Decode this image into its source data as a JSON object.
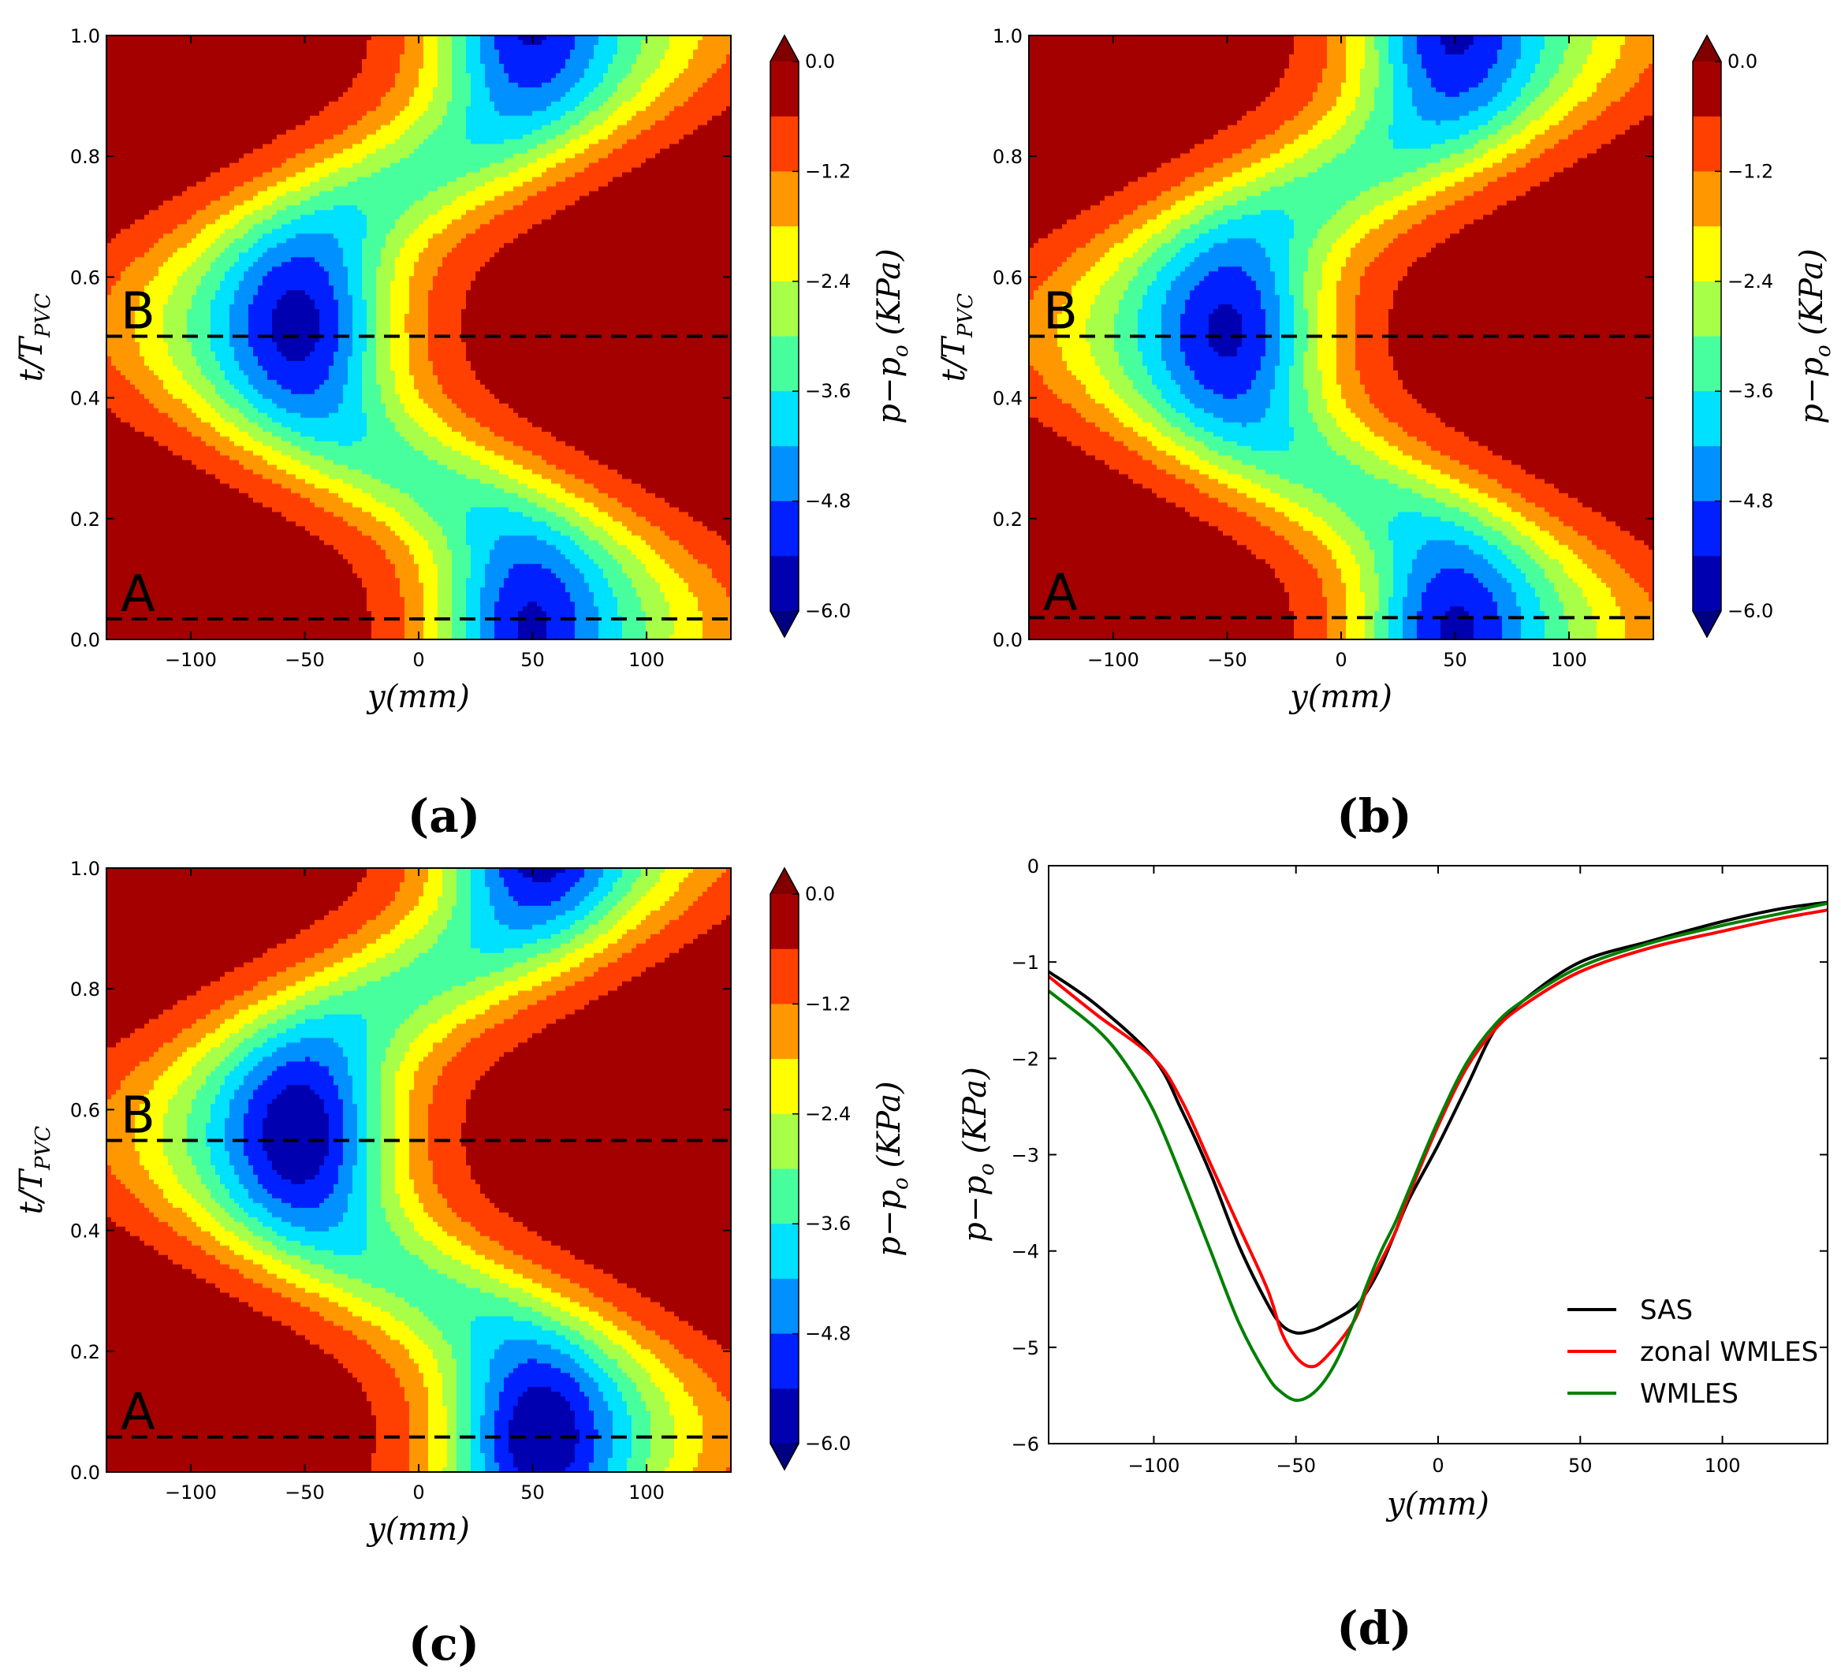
{
  "figure": {
    "panels": [
      {
        "id": "a",
        "type": "contour",
        "label": "(a)",
        "xlabel": "y(mm)",
        "ylabel_main": "t/T",
        "ylabel_sub": "PVC",
        "xlim": [
          -137,
          137
        ],
        "ylim": [
          0.0,
          1.0
        ],
        "xticks": [
          -100,
          -50,
          0,
          50,
          100
        ],
        "xtick_labels": [
          "−100",
          "−50",
          "0",
          "50",
          "100"
        ],
        "yticks": [
          0.0,
          0.2,
          0.4,
          0.6,
          0.8,
          1.0
        ],
        "ytick_labels": [
          "0.0",
          "0.2",
          "0.4",
          "0.6",
          "0.8",
          "1.0"
        ],
        "dashed_lines": [
          {
            "name": "A",
            "t": 0.034
          },
          {
            "name": "B",
            "t": 0.502
          }
        ],
        "vortex": {
          "center_t": 0.52,
          "center_y": -47,
          "second_center_y": 42,
          "strength": 1.0,
          "base_min": -6.1
        }
      },
      {
        "id": "b",
        "type": "contour",
        "label": "(b)",
        "xlabel": "y(mm)",
        "ylabel_main": "t/T",
        "ylabel_sub": "PVC",
        "xlim": [
          -137,
          137
        ],
        "ylim": [
          0.0,
          1.0
        ],
        "xticks": [
          -100,
          -50,
          0,
          50,
          100
        ],
        "xtick_labels": [
          "−100",
          "−50",
          "0",
          "50",
          "100"
        ],
        "yticks": [
          0.0,
          0.2,
          0.4,
          0.6,
          0.8,
          1.0
        ],
        "ytick_labels": [
          "0.0",
          "0.2",
          "0.4",
          "0.6",
          "0.8",
          "1.0"
        ],
        "dashed_lines": [
          {
            "name": "A",
            "t": 0.036
          },
          {
            "name": "B",
            "t": 0.502
          }
        ],
        "vortex": {
          "center_t": 0.51,
          "center_y": -43,
          "second_center_y": 43,
          "strength": 1.0,
          "base_min": -6.1
        }
      },
      {
        "id": "c",
        "type": "contour",
        "label": "(c)",
        "xlabel": "y(mm)",
        "ylabel_main": "t/T",
        "ylabel_sub": "PVC",
        "xlim": [
          -137,
          137
        ],
        "ylim": [
          0.0,
          1.0
        ],
        "xticks": [
          -100,
          -50,
          0,
          50,
          100
        ],
        "xtick_labels": [
          "−100",
          "−50",
          "0",
          "50",
          "100"
        ],
        "yticks": [
          0.0,
          0.2,
          0.4,
          0.6,
          0.8,
          1.0
        ],
        "ytick_labels": [
          "0.0",
          "0.2",
          "0.4",
          "0.6",
          "0.8",
          "1.0"
        ],
        "dashed_lines": [
          {
            "name": "A",
            "t": 0.058
          },
          {
            "name": "B",
            "t": 0.549
          }
        ],
        "vortex": {
          "center_t": 0.56,
          "center_y": -47,
          "second_center_y": 48,
          "strength": 1.0,
          "base_min": -6.4
        }
      }
    ],
    "colorbar": {
      "label": "p−p",
      "label_sub": "o",
      "label_unit": "(KPa)",
      "levels": [
        0.0,
        -0.6,
        -1.2,
        -1.8,
        -2.4,
        -3.0,
        -3.6,
        -4.2,
        -4.8,
        -5.4,
        -6.0
      ],
      "tick_values": [
        0.0,
        -1.2,
        -2.4,
        -3.6,
        -4.8,
        -6.0
      ],
      "tick_labels": [
        "0.0",
        "−1.2",
        "−2.4",
        "−3.6",
        "−4.8",
        "−6.0"
      ],
      "colors": [
        "#a40000",
        "#ff4000",
        "#ff9800",
        "#ffff00",
        "#a8ff48",
        "#48ff9e",
        "#00e0ff",
        "#0090ff",
        "#0020ff",
        "#0000b0"
      ],
      "over_color": "#800000",
      "under_color": "#000080"
    },
    "line_chart": {
      "id": "d",
      "type": "line",
      "label": "(d)",
      "xlabel": "y(mm)",
      "ylabel": "p−p",
      "ylabel_sub": "o",
      "ylabel_unit": "(KPa)",
      "xlim": [
        -137,
        137
      ],
      "ylim": [
        -6,
        0
      ],
      "xticks": [
        -100,
        -50,
        0,
        50,
        100
      ],
      "xtick_labels": [
        "−100",
        "−50",
        "0",
        "50",
        "100"
      ],
      "yticks": [
        0,
        -1,
        -2,
        -3,
        -4,
        -5,
        -6
      ],
      "ytick_labels": [
        "0",
        "−1",
        "−2",
        "−3",
        "−4",
        "−5",
        "−6"
      ],
      "legend_position": "lower-right",
      "series": [
        {
          "name": "SAS",
          "color": "#000000",
          "x": [
            -137,
            -120,
            -100,
            -90,
            -80,
            -70,
            -60,
            -55,
            -50,
            -45,
            -40,
            -30,
            -25,
            -20,
            -15,
            -10,
            0,
            10,
            20,
            30,
            50,
            75,
            100,
            120,
            137
          ],
          "y": [
            -1.1,
            -1.45,
            -2.0,
            -2.55,
            -3.2,
            -3.95,
            -4.55,
            -4.77,
            -4.85,
            -4.83,
            -4.77,
            -4.6,
            -4.42,
            -4.15,
            -3.8,
            -3.45,
            -2.9,
            -2.3,
            -1.7,
            -1.4,
            -1.0,
            -0.78,
            -0.58,
            -0.45,
            -0.38
          ]
        },
        {
          "name": "zonal WMLES",
          "color": "#ff0000",
          "x": [
            -137,
            -120,
            -100,
            -90,
            -80,
            -70,
            -60,
            -55,
            -50,
            -45,
            -40,
            -30,
            -25,
            -20,
            -15,
            -10,
            0,
            10,
            20,
            30,
            50,
            75,
            100,
            120,
            137
          ],
          "y": [
            -1.15,
            -1.55,
            -2.0,
            -2.45,
            -3.1,
            -3.75,
            -4.4,
            -4.85,
            -5.1,
            -5.2,
            -5.12,
            -4.75,
            -4.4,
            -4.1,
            -3.8,
            -3.4,
            -2.7,
            -2.1,
            -1.7,
            -1.45,
            -1.1,
            -0.85,
            -0.68,
            -0.55,
            -0.46
          ]
        },
        {
          "name": "WMLES",
          "color": "#008000",
          "x": [
            -137,
            -120,
            -110,
            -100,
            -90,
            -80,
            -70,
            -60,
            -55,
            -50,
            -45,
            -40,
            -35,
            -30,
            -25,
            -20,
            -15,
            -10,
            0,
            10,
            20,
            30,
            50,
            75,
            100,
            120,
            137
          ],
          "y": [
            -1.3,
            -1.7,
            -2.05,
            -2.55,
            -3.25,
            -4.0,
            -4.75,
            -5.3,
            -5.47,
            -5.55,
            -5.5,
            -5.35,
            -5.1,
            -4.75,
            -4.35,
            -4.0,
            -3.7,
            -3.35,
            -2.65,
            -2.05,
            -1.65,
            -1.4,
            -1.05,
            -0.8,
            -0.62,
            -0.5,
            -0.39
          ]
        }
      ]
    }
  }
}
